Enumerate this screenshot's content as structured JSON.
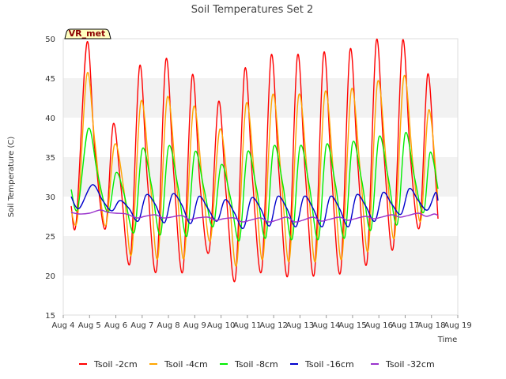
{
  "chart_data": {
    "type": "line",
    "title": "Soil Temperatures Set 2",
    "xlabel": "Time",
    "ylabel": "Soil Temperature (C)",
    "ylim": [
      15,
      50
    ],
    "xlim": [
      4,
      19
    ],
    "yticks": [
      15,
      20,
      25,
      30,
      35,
      40,
      45,
      50
    ],
    "xticks": [
      {
        "x": 4,
        "label": "Aug 4"
      },
      {
        "x": 5,
        "label": "Aug 5"
      },
      {
        "x": 6,
        "label": "Aug 6"
      },
      {
        "x": 7,
        "label": "Aug 7"
      },
      {
        "x": 8,
        "label": "Aug 8"
      },
      {
        "x": 9,
        "label": "Aug 9"
      },
      {
        "x": 10,
        "label": "Aug 10"
      },
      {
        "x": 11,
        "label": "Aug 11"
      },
      {
        "x": 12,
        "label": "Aug 12"
      },
      {
        "x": 13,
        "label": "Aug 13"
      },
      {
        "x": 14,
        "label": "Aug 14"
      },
      {
        "x": 15,
        "label": "Aug 15"
      },
      {
        "x": 16,
        "label": "Aug 16"
      },
      {
        "x": 17,
        "label": "Aug 17"
      },
      {
        "x": 18,
        "label": "Aug 18"
      },
      {
        "x": 19,
        "label": "Aug 19"
      }
    ],
    "grid": "horizontal bands",
    "legend_position": "bottom",
    "badge": "VR_met",
    "series": [
      {
        "name": "Tsoil -2cm",
        "color": "#ff0000",
        "points": [
          [
            4.3,
            28.8
          ],
          [
            4.5,
            27.0
          ],
          [
            4.9,
            49.5
          ],
          [
            5.2,
            36.0
          ],
          [
            5.6,
            25.9
          ],
          [
            5.9,
            39.2
          ],
          [
            6.2,
            31.0
          ],
          [
            6.55,
            21.8
          ],
          [
            6.9,
            46.5
          ],
          [
            7.2,
            32.0
          ],
          [
            7.55,
            20.8
          ],
          [
            7.9,
            47.3
          ],
          [
            8.2,
            33.0
          ],
          [
            8.55,
            20.6
          ],
          [
            8.9,
            45.3
          ],
          [
            9.2,
            31.5
          ],
          [
            9.55,
            23.1
          ],
          [
            9.9,
            42.0
          ],
          [
            10.2,
            30.0
          ],
          [
            10.55,
            19.7
          ],
          [
            10.9,
            46.1
          ],
          [
            11.2,
            32.0
          ],
          [
            11.55,
            20.8
          ],
          [
            11.9,
            47.8
          ],
          [
            12.2,
            33.0
          ],
          [
            12.55,
            20.2
          ],
          [
            12.9,
            47.8
          ],
          [
            13.2,
            33.0
          ],
          [
            13.55,
            20.3
          ],
          [
            13.9,
            48.1
          ],
          [
            14.2,
            33.0
          ],
          [
            14.55,
            20.6
          ],
          [
            14.9,
            48.5
          ],
          [
            15.2,
            34.0
          ],
          [
            15.55,
            21.7
          ],
          [
            15.9,
            49.7
          ],
          [
            16.2,
            35.0
          ],
          [
            16.55,
            23.6
          ],
          [
            16.9,
            49.7
          ],
          [
            17.2,
            35.0
          ],
          [
            17.55,
            26.2
          ],
          [
            17.85,
            45.4
          ],
          [
            18.1,
            35.0
          ],
          [
            18.25,
            27.2
          ]
        ]
      },
      {
        "name": "Tsoil -4cm",
        "color": "#ffa500",
        "points": [
          [
            4.3,
            28.2
          ],
          [
            4.55,
            27.5
          ],
          [
            4.9,
            45.5
          ],
          [
            5.2,
            37.0
          ],
          [
            5.6,
            26.3
          ],
          [
            5.95,
            36.6
          ],
          [
            6.3,
            31.0
          ],
          [
            6.6,
            22.8
          ],
          [
            6.95,
            42.0
          ],
          [
            7.3,
            32.0
          ],
          [
            7.6,
            22.3
          ],
          [
            7.95,
            42.5
          ],
          [
            8.3,
            32.0
          ],
          [
            8.6,
            22.3
          ],
          [
            8.95,
            41.3
          ],
          [
            9.3,
            31.5
          ],
          [
            9.6,
            24.5
          ],
          [
            9.95,
            38.5
          ],
          [
            10.3,
            30.0
          ],
          [
            10.6,
            21.5
          ],
          [
            10.95,
            41.7
          ],
          [
            11.3,
            31.5
          ],
          [
            11.6,
            22.3
          ],
          [
            11.95,
            42.8
          ],
          [
            12.3,
            32.0
          ],
          [
            12.6,
            22.0
          ],
          [
            12.95,
            42.8
          ],
          [
            13.3,
            32.0
          ],
          [
            13.6,
            22.0
          ],
          [
            13.95,
            43.2
          ],
          [
            14.3,
            32.0
          ],
          [
            14.6,
            22.3
          ],
          [
            14.95,
            43.5
          ],
          [
            15.3,
            33.0
          ],
          [
            15.6,
            23.3
          ],
          [
            15.95,
            44.5
          ],
          [
            16.3,
            33.5
          ],
          [
            16.6,
            25.0
          ],
          [
            16.95,
            45.2
          ],
          [
            17.3,
            34.0
          ],
          [
            17.6,
            27.0
          ],
          [
            17.9,
            41.0
          ],
          [
            18.25,
            29.5
          ]
        ]
      },
      {
        "name": "Tsoil -8cm",
        "color": "#00ee00",
        "points": [
          [
            4.3,
            30.9
          ],
          [
            4.55,
            28.5
          ],
          [
            4.95,
            38.6
          ],
          [
            5.3,
            33.0
          ],
          [
            5.7,
            28.0
          ],
          [
            6.0,
            33.0
          ],
          [
            6.3,
            30.5
          ],
          [
            6.7,
            25.5
          ],
          [
            7.0,
            36.0
          ],
          [
            7.35,
            31.5
          ],
          [
            7.7,
            25.2
          ],
          [
            8.0,
            36.3
          ],
          [
            8.35,
            31.5
          ],
          [
            8.7,
            25.0
          ],
          [
            9.0,
            35.6
          ],
          [
            9.35,
            31.0
          ],
          [
            9.7,
            26.2
          ],
          [
            10.0,
            34.0
          ],
          [
            10.35,
            30.0
          ],
          [
            10.7,
            24.5
          ],
          [
            11.0,
            35.6
          ],
          [
            11.35,
            31.0
          ],
          [
            11.7,
            24.8
          ],
          [
            12.0,
            36.3
          ],
          [
            12.35,
            31.5
          ],
          [
            12.7,
            24.6
          ],
          [
            13.0,
            36.3
          ],
          [
            13.35,
            31.5
          ],
          [
            13.7,
            24.6
          ],
          [
            14.0,
            36.5
          ],
          [
            14.35,
            31.5
          ],
          [
            14.7,
            24.8
          ],
          [
            15.0,
            36.8
          ],
          [
            15.35,
            32.0
          ],
          [
            15.7,
            25.8
          ],
          [
            16.0,
            37.5
          ],
          [
            16.35,
            32.5
          ],
          [
            16.7,
            26.5
          ],
          [
            17.0,
            38.0
          ],
          [
            17.35,
            32.5
          ],
          [
            17.7,
            28.0
          ],
          [
            17.95,
            35.6
          ],
          [
            18.25,
            31.0
          ]
        ]
      },
      {
        "name": "Tsoil -16cm",
        "color": "#0000cc",
        "points": [
          [
            4.3,
            30.0
          ],
          [
            4.6,
            28.5
          ],
          [
            5.1,
            31.5
          ],
          [
            5.5,
            29.5
          ],
          [
            5.85,
            28.2
          ],
          [
            6.15,
            29.5
          ],
          [
            6.5,
            28.5
          ],
          [
            6.85,
            26.9
          ],
          [
            7.15,
            30.2
          ],
          [
            7.5,
            29.0
          ],
          [
            7.85,
            26.7
          ],
          [
            8.15,
            30.3
          ],
          [
            8.5,
            29.0
          ],
          [
            8.85,
            26.6
          ],
          [
            9.15,
            30.0
          ],
          [
            9.5,
            28.5
          ],
          [
            9.85,
            26.9
          ],
          [
            10.15,
            29.6
          ],
          [
            10.5,
            28.0
          ],
          [
            10.85,
            26.0
          ],
          [
            11.15,
            29.8
          ],
          [
            11.5,
            28.5
          ],
          [
            11.85,
            26.3
          ],
          [
            12.15,
            30.0
          ],
          [
            12.5,
            28.5
          ],
          [
            12.85,
            26.2
          ],
          [
            13.15,
            30.0
          ],
          [
            13.5,
            28.5
          ],
          [
            13.85,
            26.2
          ],
          [
            14.15,
            30.0
          ],
          [
            14.5,
            28.5
          ],
          [
            14.85,
            26.2
          ],
          [
            15.15,
            30.2
          ],
          [
            15.5,
            28.8
          ],
          [
            15.85,
            26.9
          ],
          [
            16.15,
            30.5
          ],
          [
            16.5,
            29.0
          ],
          [
            16.85,
            27.8
          ],
          [
            17.15,
            31.0
          ],
          [
            17.5,
            29.5
          ],
          [
            17.85,
            28.3
          ],
          [
            18.15,
            30.5
          ],
          [
            18.25,
            29.5
          ]
        ]
      },
      {
        "name": "Tsoil -32cm",
        "color": "#9932cc",
        "points": [
          [
            4.3,
            28.0
          ],
          [
            4.6,
            27.8
          ],
          [
            5.0,
            27.9
          ],
          [
            5.4,
            28.3
          ],
          [
            5.7,
            28.0
          ],
          [
            6.0,
            27.9
          ],
          [
            6.4,
            27.8
          ],
          [
            6.8,
            27.3
          ],
          [
            7.1,
            27.5
          ],
          [
            7.5,
            27.7
          ],
          [
            7.8,
            27.3
          ],
          [
            8.1,
            27.4
          ],
          [
            8.5,
            27.6
          ],
          [
            8.8,
            27.1
          ],
          [
            9.1,
            27.3
          ],
          [
            9.5,
            27.4
          ],
          [
            9.8,
            27.0
          ],
          [
            10.1,
            27.2
          ],
          [
            10.5,
            27.3
          ],
          [
            10.8,
            26.8
          ],
          [
            11.1,
            27.0
          ],
          [
            11.5,
            27.3
          ],
          [
            11.8,
            26.8
          ],
          [
            12.1,
            27.0
          ],
          [
            12.5,
            27.4
          ],
          [
            12.8,
            26.8
          ],
          [
            13.1,
            27.0
          ],
          [
            13.5,
            27.4
          ],
          [
            13.8,
            26.9
          ],
          [
            14.1,
            27.1
          ],
          [
            14.5,
            27.4
          ],
          [
            14.8,
            27.0
          ],
          [
            15.1,
            27.2
          ],
          [
            15.5,
            27.5
          ],
          [
            15.8,
            27.2
          ],
          [
            16.1,
            27.4
          ],
          [
            16.5,
            27.7
          ],
          [
            16.8,
            27.4
          ],
          [
            17.1,
            27.6
          ],
          [
            17.5,
            27.9
          ],
          [
            17.8,
            27.5
          ],
          [
            18.1,
            27.8
          ],
          [
            18.25,
            27.6
          ]
        ]
      }
    ]
  }
}
